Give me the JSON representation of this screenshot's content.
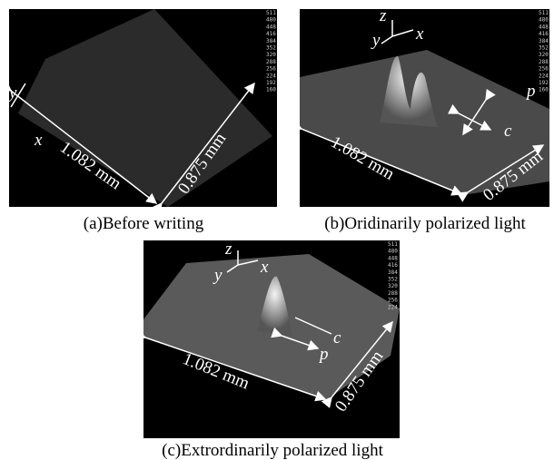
{
  "panels": [
    {
      "caption": "(a)Before writing",
      "x": "x",
      "y": "y",
      "length": "1.082 mm",
      "width": "0.875 mm",
      "scale": [
        511,
        480,
        448,
        416,
        384,
        352,
        320,
        288,
        256,
        224,
        192,
        160
      ]
    },
    {
      "caption": "(b)Oridinarily polarized light",
      "x": "x",
      "y": "y",
      "z": "z",
      "p": "p",
      "c": "c",
      "length": "1.082 mm",
      "width": "0.875 mm",
      "scale": [
        511,
        480,
        448,
        416,
        384,
        352,
        320,
        288,
        256,
        224,
        192,
        160
      ]
    },
    {
      "caption": "(c)Extrordinarily polarized light",
      "x": "x",
      "y": "y",
      "z": "z",
      "p": "p",
      "c": "c",
      "length": "1.082 mm",
      "width": "0.875 mm",
      "scale": [
        511,
        480,
        448,
        416,
        384,
        352,
        320,
        288,
        256,
        224
      ]
    }
  ]
}
